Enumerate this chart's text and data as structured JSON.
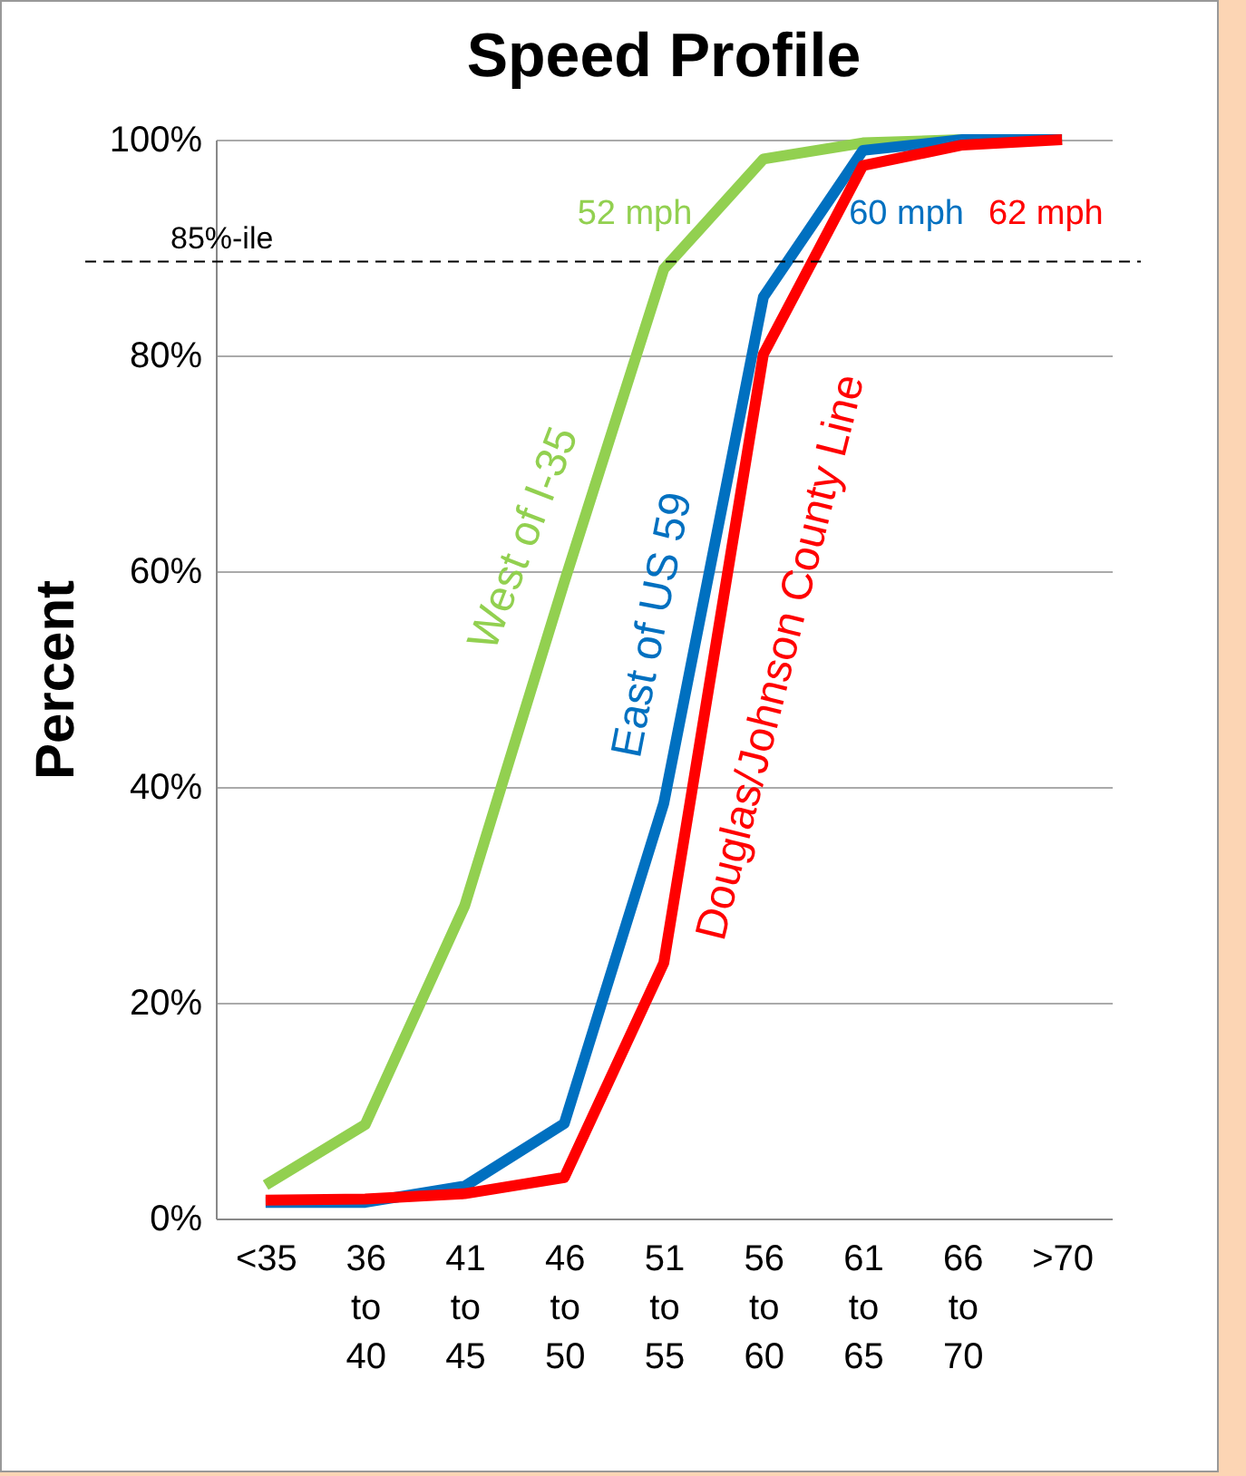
{
  "chart_data": {
    "type": "line",
    "title": "Speed Profile",
    "ylabel": "Percent",
    "categories": [
      "<35",
      "36 to 40",
      "41 to 45",
      "46 to 50",
      "51 to 55",
      "56 to 60",
      "61 to 65",
      "66 to 70",
      ">70"
    ],
    "series": [
      {
        "name": "West of I-35",
        "color": "#92d050",
        "values": [
          3.1,
          8.7,
          29,
          59,
          88,
          98.2,
          99.7,
          100,
          100
        ]
      },
      {
        "name": "East of US 59",
        "color": "#0070c0",
        "values": [
          1.5,
          1.5,
          3,
          8.8,
          38.5,
          85.4,
          99,
          100,
          100
        ]
      },
      {
        "name": "Douglas/Johnson County Line",
        "color": "#ff0000",
        "values": [
          1.7,
          1.8,
          2.3,
          3.8,
          23.7,
          80.1,
          97.6,
          99.5,
          100
        ]
      }
    ],
    "ylim": [
      0,
      100
    ],
    "yticks": [
      {
        "value": 0,
        "label": "0%"
      },
      {
        "value": 20,
        "label": "20%"
      },
      {
        "value": 40,
        "label": "40%"
      },
      {
        "value": 60,
        "label": "60%"
      },
      {
        "value": 80,
        "label": "80%"
      },
      {
        "value": 100,
        "label": "100%"
      }
    ],
    "grid": "y",
    "legend": false,
    "marker": "none",
    "line_style": "solid",
    "ref_lines": [
      {
        "axis": "y",
        "value": 88.7,
        "label": "85%-ile",
        "color": "#000000",
        "line_style": "dashed"
      }
    ],
    "annotations": [
      "52 mph",
      "60 mph",
      "62 mph"
    ]
  }
}
